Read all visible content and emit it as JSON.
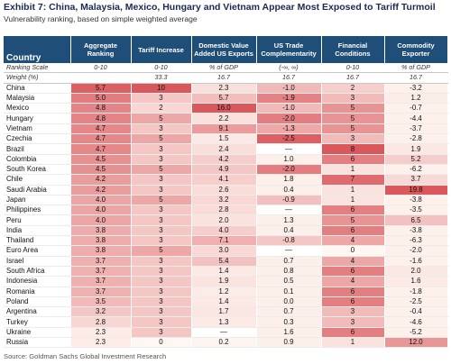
{
  "title": "Exhibit 7: China, Malaysia, Mexico, Hungary and Vietnam Appear Most Exposed to Tariff Turmoil",
  "subtitle": "Vulnerability ranking, based on simple weighted average",
  "source": "Source: Goldman Sachs Global Investment Research",
  "columns": [
    "Country",
    "Aggregate Ranking",
    "Tariff Increase",
    "Domestic Value Added US Exports",
    "US Trade Complementarity",
    "Financial Conditions",
    "Commodity Exporter"
  ],
  "ranking_scale_row": [
    "Ranking Scale",
    "0-10",
    "0-10",
    "% of GDP",
    "(-∞, ∞)",
    "0-10",
    "% of GDP"
  ],
  "weight_row": [
    "Weight (%)",
    "",
    "33.3",
    "16.7",
    "16.7",
    "16.7",
    "16.7"
  ],
  "rows": [
    [
      "China",
      "5.7",
      "10",
      "2.3",
      "-1.0",
      "2",
      "-3.2"
    ],
    [
      "Malaysia",
      "5.0",
      "3",
      "5.7",
      "-1.9",
      "3",
      "1.2"
    ],
    [
      "Mexico",
      "4.8",
      "2",
      "16.0",
      "-1.0",
      "5",
      "-0.7"
    ],
    [
      "Hungary",
      "4.8",
      "5",
      "2.2",
      "-2.0",
      "5",
      "-4.4"
    ],
    [
      "Vietnam",
      "4.7",
      "3",
      "9.1",
      "-1.3",
      "5",
      "-3.7"
    ],
    [
      "Czechia",
      "4.7",
      "5",
      "1.5",
      "-2.5",
      "3",
      "-2.8"
    ],
    [
      "Brazil",
      "4.7",
      "3",
      "2.4",
      "—",
      "8",
      "1.9"
    ],
    [
      "Colombia",
      "4.5",
      "3",
      "4.2",
      "1.0",
      "6",
      "5.2"
    ],
    [
      "South Korea",
      "4.5",
      "5",
      "4.9",
      "-2.0",
      "1",
      "-6.2"
    ],
    [
      "Chile",
      "4.2",
      "3",
      "4.1",
      "1.8",
      "7",
      "3.7"
    ],
    [
      "Saudi Arabia",
      "4.2",
      "3",
      "2.6",
      "0.4",
      "1",
      "19.8"
    ],
    [
      "Japan",
      "4.0",
      "5",
      "3.2",
      "-0.9",
      "1",
      "-3.8"
    ],
    [
      "Philippines",
      "4.0",
      "3",
      "2.8",
      "—",
      "6",
      "-3.5"
    ],
    [
      "Peru",
      "4.0",
      "3",
      "2.0",
      "1.3",
      "5",
      "6.5"
    ],
    [
      "India",
      "3.8",
      "3",
      "4.0",
      "0.4",
      "6",
      "-3.8"
    ],
    [
      "Thailand",
      "3.8",
      "3",
      "7.1",
      "-0.8",
      "4",
      "-6.3"
    ],
    [
      "Euro Area",
      "3.8",
      "5",
      "3.0",
      "—",
      "0",
      "-2.0"
    ],
    [
      "Israel",
      "3.7",
      "3",
      "5.4",
      "0.7",
      "4",
      "-1.6"
    ],
    [
      "South Africa",
      "3.7",
      "3",
      "1.4",
      "0.8",
      "6",
      "2.0"
    ],
    [
      "Indonesia",
      "3.7",
      "3",
      "1.9",
      "0.5",
      "4",
      "1.6"
    ],
    [
      "Romania",
      "3.7",
      "3",
      "1.2",
      "0.1",
      "6",
      "-1.8"
    ],
    [
      "Poland",
      "3.5",
      "3",
      "1.4",
      "0.0",
      "6",
      "-2.5"
    ],
    [
      "Argentina",
      "3.2",
      "3",
      "1.7",
      "0.7",
      "3",
      "-0.4"
    ],
    [
      "Turkey",
      "2.8",
      "3",
      "1.3",
      "0.3",
      "3",
      "-4.6"
    ],
    [
      "Ukraine",
      "2.3",
      "3",
      "—",
      "1.6",
      "6",
      "-5.2"
    ],
    [
      "Russia",
      "2.3",
      "0",
      "0.2",
      "0.9",
      "1",
      "12.0"
    ]
  ],
  "colors": {
    "header_bg": "#1f4e79",
    "header_text": "#ffffff",
    "heat_low": "#fff7f2",
    "heat_high": "#d7494e",
    "title": "#1a2a55"
  }
}
